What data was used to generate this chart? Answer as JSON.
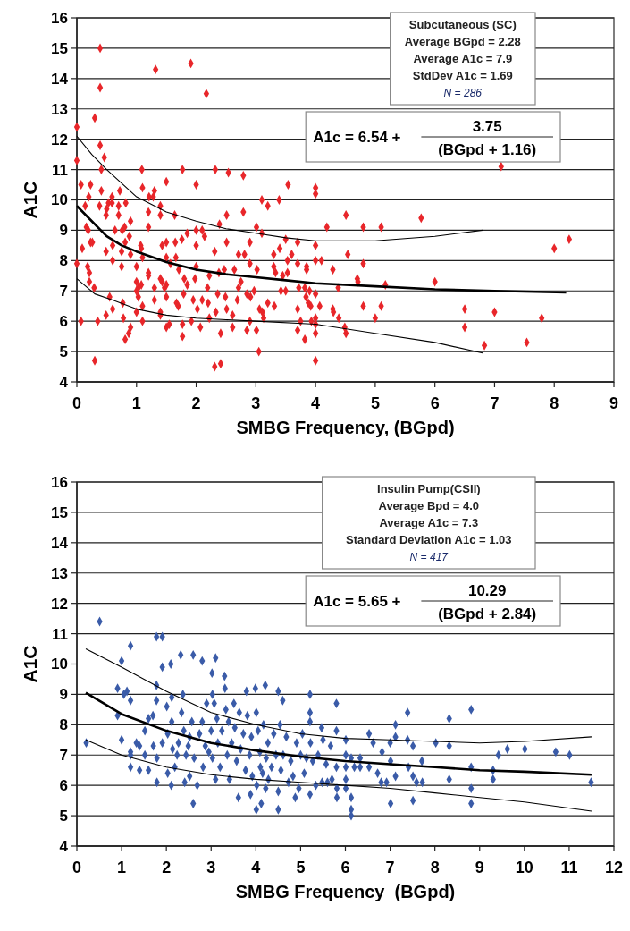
{
  "chart_data": [
    {
      "type": "scatter",
      "xlabel": "SMBG Frequency, (BGpd)",
      "ylabel": "A1C",
      "xlim": [
        0,
        9
      ],
      "xticks": [
        0,
        1,
        2,
        3,
        4,
        5,
        6,
        7,
        8,
        9
      ],
      "ylim": [
        4,
        16
      ],
      "yticks": [
        4,
        5,
        6,
        7,
        8,
        9,
        10,
        11,
        12,
        13,
        14,
        15,
        16
      ],
      "grid": "y",
      "annotations": [
        "Subcutaneous (SC)",
        "Average BGpd = 2.28",
        "Average A1c = 7.9",
        "StdDev A1c = 1.69",
        "N = 286",
        "A1c = 6.54 +",
        "3.75",
        "(BGpd + 1.16)"
      ],
      "series": [
        {
          "type": "scatter",
          "color": "#e8262a",
          "marker": "diamond",
          "x": [
            0,
            0,
            0,
            0.07,
            0.07,
            0.09,
            0.14,
            0.16,
            0.19,
            0.18,
            0.21,
            0.23,
            0.2,
            0.23,
            0.26,
            0.21,
            0.3,
            0.3,
            0.29,
            0.35,
            0.39,
            0.39,
            0.39,
            0.46,
            0.41,
            0.41,
            0.38,
            0.5,
            0.49,
            0.53,
            0.59,
            0.59,
            0.49,
            0.49,
            0.55,
            0.6,
            0.6,
            0.64,
            0.6,
            0.7,
            0.7,
            0.72,
            0.75,
            0.75,
            0.76,
            0.77,
            0.8,
            0.82,
            0.81,
            0.78,
            0.81,
            0.87,
            0.9,
            0.88,
            0.9,
            0.9,
            1.0,
            1.0,
            1.0,
            1.03,
            1.0,
            1.03,
            1.07,
            1.08,
            1.1,
            1.09,
            1.1,
            1.1,
            1.1,
            1.08,
            1.2,
            1.2,
            1.2,
            1.2,
            1.21,
            1.28,
            1.3,
            1.32,
            1.3,
            1.3,
            1.4,
            1.4,
            1.4,
            1.4,
            1.4,
            1.43,
            1.43,
            1.47,
            1.5,
            1.5,
            1.5,
            1.5,
            1.5,
            1.5,
            1.55,
            1.57,
            1.64,
            1.65,
            1.66,
            1.67,
            1.7,
            1.71,
            1.77,
            1.76,
            1.77,
            1.77,
            1.79,
            1.8,
            1.85,
            1.85,
            1.91,
            1.92,
            2.0,
            2.0,
            2.0,
            2.0,
            1.98,
            1.95,
            2.02,
            2.07,
            2.1,
            2.14,
            2.1,
            2.17,
            2.19,
            2.22,
            2.22,
            2.2,
            2.31,
            2.32,
            2.31,
            2.41,
            2.39,
            2.38,
            2.36,
            2.41,
            2.33,
            2.51,
            2.51,
            2.47,
            2.49,
            2.51,
            2.54,
            2.61,
            2.61,
            2.64,
            2.69,
            2.71,
            2.71,
            2.75,
            2.79,
            2.79,
            2.81,
            2.85,
            2.85,
            2.9,
            2.9,
            2.91,
            2.9,
            2.97,
            3.01,
            3.02,
            3.01,
            3.05,
            3.06,
            3.1,
            3.1,
            3.11,
            3.13,
            3.2,
            3.2,
            3.3,
            3.3,
            3.31,
            3.33,
            3.39,
            3.4,
            3.42,
            3.45,
            3.5,
            3.5,
            3.53,
            3.53,
            3.54,
            3.6,
            3.7,
            3.7,
            3.7,
            3.7,
            3.72,
            3.75,
            3.82,
            3.82,
            3.84,
            3.85,
            3.85,
            3.88,
            3.9,
            3.92,
            3.93,
            4.0,
            4.0,
            4.0,
            4.0,
            4.0,
            4.0,
            4.0,
            4.0,
            4.0,
            4.07,
            4.1,
            4.19,
            4.29,
            4.29,
            4.3,
            4.38,
            4.39,
            4.51,
            4.8,
            5.1,
            5.77,
            4.54,
            4.8,
            4.7,
            4.71,
            5.17,
            6.0,
            7.11,
            8.0,
            8.25,
            4.8,
            5.1,
            5.0,
            4.49,
            4.51,
            6.5,
            6.5,
            7.0,
            6.83,
            7.54,
            7.79
          ],
          "values": [
            12.4,
            11.3,
            7.9,
            10.5,
            6.0,
            8.4,
            9.8,
            9.1,
            9.0,
            7.8,
            7.6,
            10.5,
            10.1,
            8.6,
            8.6,
            7.3,
            12.7,
            4.7,
            7.1,
            6.0,
            15.0,
            13.7,
            11.8,
            11.4,
            11.0,
            10.3,
            9.8,
            9.7,
            9.5,
            9.9,
            10.1,
            9.9,
            8.3,
            6.2,
            6.8,
            8.5,
            8.0,
            9.0,
            6.4,
            9.8,
            9.5,
            10.3,
            7.8,
            8.3,
            9.0,
            6.6,
            9.1,
            9.9,
            8.6,
            6.1,
            5.4,
            5.6,
            5.8,
            8.8,
            9.3,
            8.2,
            7.8,
            7.3,
            7.0,
            6.8,
            6.3,
            7.1,
            8.5,
            8.4,
            8.1,
            11.0,
            10.4,
            6.5,
            6.0,
            7.2,
            9.6,
            9.1,
            7.6,
            7.5,
            10.1,
            10.1,
            10.3,
            14.3,
            7.1,
            6.7,
            9.8,
            9.5,
            7.4,
            6.3,
            6.2,
            8.5,
            7.3,
            7.1,
            10.6,
            8.6,
            8.1,
            7.2,
            6.8,
            5.8,
            5.9,
            7.9,
            9.5,
            8.6,
            8.1,
            6.6,
            6.5,
            7.7,
            11.0,
            8.7,
            5.9,
            5.5,
            6.9,
            7.4,
            7.2,
            8.9,
            14.5,
            6.0,
            10.5,
            9.0,
            8.5,
            7.8,
            7.4,
            6.7,
            6.4,
            5.8,
            9.0,
            8.8,
            6.7,
            13.5,
            7.1,
            7.5,
            6.1,
            6.6,
            8.3,
            11.0,
            4.5,
            4.6,
            9.2,
            7.6,
            6.9,
            5.6,
            6.3,
            9.5,
            8.6,
            7.7,
            6.8,
            6.4,
            10.9,
            5.8,
            6.2,
            7.7,
            6.7,
            8.2,
            7.1,
            7.3,
            10.8,
            9.6,
            8.2,
            5.7,
            6.9,
            7.9,
            6.0,
            6.8,
            8.6,
            7.0,
            9.1,
            7.7,
            5.7,
            5.0,
            6.4,
            10.0,
            8.9,
            6.3,
            6.1,
            9.8,
            6.6,
            8.2,
            7.8,
            6.5,
            7.6,
            10.0,
            8.4,
            7.0,
            7.5,
            8.7,
            7.0,
            8.0,
            7.6,
            10.5,
            8.2,
            8.6,
            7.9,
            6.4,
            5.7,
            7.1,
            6.0,
            7.1,
            5.4,
            6.8,
            7.8,
            7.7,
            6.6,
            7.0,
            6.5,
            6.0,
            10.4,
            10.2,
            8.5,
            8.0,
            6.9,
            6.1,
            5.9,
            5.6,
            4.7,
            6.5,
            8.0,
            9.1,
            7.7,
            6.4,
            6.3,
            7.1,
            6.1,
            9.5,
            9.1,
            9.1,
            9.4,
            8.2,
            7.9,
            7.4,
            7.3,
            7.2,
            7.3,
            11.1,
            8.4,
            8.7,
            6.5,
            6.5,
            6.1,
            5.8,
            5.6,
            6.4,
            5.8,
            6.3,
            5.2,
            5.3,
            6.1
          ]
        },
        {
          "type": "line",
          "color": "#000000",
          "marker": "none",
          "x": [
            0,
            0.25,
            0.5,
            0.75,
            1,
            1.5,
            2,
            2.5,
            3,
            3.5,
            4,
            5,
            6,
            7,
            8.2
          ],
          "values": [
            9.8,
            9.3,
            8.8,
            8.5,
            8.3,
            7.95,
            7.7,
            7.55,
            7.45,
            7.35,
            7.25,
            7.15,
            7.05,
            7.0,
            6.95
          ]
        },
        {
          "type": "line",
          "color": "#000000",
          "marker": "none",
          "x": [
            0,
            0.25,
            0.5,
            1,
            1.5,
            2,
            2.5,
            3,
            3.5,
            4,
            5,
            6,
            6.8
          ],
          "values": [
            12.1,
            11.5,
            11.0,
            10.1,
            9.6,
            9.3,
            9.05,
            8.9,
            8.75,
            8.65,
            8.65,
            8.8,
            9.0
          ]
        },
        {
          "type": "line",
          "color": "#000000",
          "marker": "none",
          "x": [
            0,
            0.3,
            0.6,
            1,
            1.5,
            2,
            2.5,
            3,
            4,
            5,
            6,
            6.8
          ],
          "values": [
            7.4,
            6.9,
            6.7,
            6.4,
            6.2,
            6.1,
            6.05,
            6.0,
            5.9,
            5.6,
            5.3,
            4.95
          ]
        }
      ]
    },
    {
      "type": "scatter",
      "xlabel": "SMBG Frequency  (BGpd)",
      "ylabel": "A1C",
      "xlim": [
        0,
        12
      ],
      "xticks": [
        0,
        1,
        2,
        3,
        4,
        5,
        6,
        7,
        8,
        9,
        10,
        11,
        12
      ],
      "ylim": [
        4,
        16
      ],
      "yticks": [
        4,
        5,
        6,
        7,
        8,
        9,
        10,
        11,
        12,
        13,
        14,
        15,
        16
      ],
      "grid": "y",
      "annotations": [
        "Insulin Pump(CSII)",
        "Average Bpd = 4.0",
        "Average A1c = 7.3",
        "Standard Deviation A1c = 1.03",
        "N = 417",
        "A1c = 5.65 +",
        "10.29",
        "(BGpd + 2.84)"
      ],
      "series": [
        {
          "type": "scatter",
          "color": "#3a5ba8",
          "marker": "diamond",
          "x": [
            0.21,
            0.51,
            0.91,
            0.91,
            1.0,
            1.0,
            1.05,
            1.12,
            1.2,
            1.2,
            1.2,
            1.2,
            1.2,
            1.33,
            1.4,
            1.4,
            1.52,
            1.52,
            1.6,
            1.6,
            1.7,
            1.71,
            1.78,
            1.78,
            1.78,
            1.79,
            1.79,
            1.91,
            1.91,
            1.91,
            2.01,
            2.03,
            2.03,
            2.1,
            2.11,
            2.12,
            2.12,
            2.14,
            2.19,
            2.24,
            2.27,
            2.32,
            2.34,
            2.37,
            2.39,
            2.41,
            2.44,
            2.49,
            2.52,
            2.52,
            2.57,
            2.6,
            2.6,
            2.62,
            2.69,
            2.74,
            2.8,
            2.8,
            2.82,
            2.87,
            2.9,
            2.95,
            3.0,
            3.02,
            3.03,
            3.03,
            3.07,
            3.1,
            3.1,
            3.13,
            3.15,
            3.2,
            3.24,
            3.3,
            3.31,
            3.33,
            3.36,
            3.39,
            3.41,
            3.46,
            3.51,
            3.53,
            3.57,
            3.61,
            3.63,
            3.66,
            3.72,
            3.77,
            3.79,
            3.81,
            3.86,
            3.88,
            3.9,
            3.92,
            3.99,
            4.01,
            4.01,
            4.02,
            4.05,
            4.09,
            4.1,
            4.12,
            4.15,
            4.17,
            4.21,
            4.22,
            4.23,
            4.27,
            4.28,
            4.35,
            4.4,
            4.45,
            4.5,
            4.5,
            4.5,
            4.54,
            4.56,
            4.6,
            4.61,
            4.68,
            4.73,
            4.78,
            4.83,
            4.88,
            4.91,
            4.96,
            5.0,
            5.04,
            5.08,
            5.13,
            5.21,
            5.21,
            5.21,
            5.21,
            5.22,
            5.27,
            5.34,
            5.39,
            5.47,
            5.48,
            5.5,
            5.57,
            5.6,
            5.67,
            5.7,
            5.8,
            5.8,
            5.8,
            5.81,
            5.81,
            6.01,
            6.01,
            6.01,
            6.01,
            6.01,
            6.13,
            6.13,
            6.13,
            6.13,
            6.2,
            6.33,
            6.33,
            6.53,
            6.53,
            6.62,
            6.72,
            6.8,
            6.82,
            6.92,
            7.0,
            7.01,
            7.01,
            7.12,
            7.12,
            7.12,
            7.39,
            7.39,
            7.41,
            7.51,
            7.51,
            7.51,
            7.59,
            7.71,
            7.72,
            8.02,
            8.32,
            8.32,
            8.32,
            8.81,
            8.81,
            8.81,
            8.81,
            9.3,
            9.3,
            9.42,
            9.62,
            10.01,
            10.7,
            11.01,
            11.49
          ],
          "values": [
            7.4,
            11.4,
            9.2,
            8.3,
            10.1,
            7.5,
            9.0,
            9.1,
            10.6,
            8.8,
            7.1,
            7.0,
            6.6,
            7.4,
            7.3,
            6.5,
            7.8,
            7.0,
            6.5,
            8.2,
            8.3,
            7.3,
            10.9,
            9.3,
            8.8,
            6.1,
            6.9,
            10.9,
            9.9,
            7.4,
            8.6,
            7.7,
            6.4,
            10.0,
            6.0,
            8.9,
            8.1,
            7.2,
            6.6,
            7.0,
            7.4,
            10.3,
            8.4,
            9.0,
            7.8,
            6.1,
            7.0,
            7.3,
            6.3,
            7.6,
            8.1,
            10.3,
            5.4,
            6.9,
            6.0,
            7.7,
            10.1,
            8.1,
            6.6,
            7.3,
            8.7,
            7.1,
            7.8,
            9.7,
            9.0,
            6.9,
            8.7,
            10.2,
            6.2,
            8.2,
            7.4,
            6.6,
            7.8,
            9.6,
            9.2,
            8.5,
            7.0,
            8.1,
            6.2,
            7.4,
            8.7,
            7.9,
            6.8,
            5.6,
            8.4,
            7.2,
            7.7,
            6.5,
            9.1,
            8.3,
            7.0,
            5.7,
            7.6,
            6.3,
            9.2,
            8.4,
            5.2,
            6.0,
            7.8,
            7.1,
            6.6,
            5.4,
            6.4,
            8.0,
            9.3,
            5.9,
            6.9,
            7.4,
            6.2,
            6.6,
            7.7,
            7.0,
            9.1,
            5.8,
            5.2,
            8.0,
            6.5,
            8.8,
            7.0,
            7.6,
            6.1,
            6.8,
            6.3,
            5.6,
            7.4,
            5.9,
            7.0,
            7.7,
            6.4,
            6.9,
            9.0,
            8.4,
            8.1,
            5.7,
            7.4,
            6.8,
            6.0,
            7.0,
            7.9,
            6.1,
            7.5,
            6.7,
            6.1,
            7.3,
            6.2,
            8.7,
            7.8,
            6.6,
            5.6,
            5.9,
            7.5,
            7.0,
            6.6,
            6.2,
            5.9,
            5.6,
            5.2,
            5.0,
            6.9,
            6.6,
            6.9,
            6.6,
            7.7,
            6.6,
            7.4,
            6.4,
            6.1,
            7.1,
            6.1,
            7.4,
            6.8,
            5.4,
            8.0,
            7.6,
            6.3,
            8.4,
            7.5,
            6.6,
            7.3,
            6.3,
            5.5,
            6.1,
            6.8,
            6.1,
            7.4,
            8.2,
            7.3,
            6.2,
            8.5,
            6.6,
            5.9,
            5.4,
            6.5,
            6.2,
            7.0,
            7.2,
            7.2,
            7.1,
            7.0,
            6.1
          ]
        },
        {
          "type": "line",
          "color": "#000000",
          "marker": "none",
          "x": [
            0.2,
            1,
            2,
            3,
            4,
            5,
            6,
            7,
            8,
            9,
            10,
            11.5
          ],
          "values": [
            9.05,
            8.35,
            7.8,
            7.4,
            7.15,
            6.95,
            6.8,
            6.7,
            6.6,
            6.5,
            6.45,
            6.35
          ]
        },
        {
          "type": "line",
          "color": "#000000",
          "marker": "none",
          "x": [
            0.2,
            1,
            2,
            3,
            4,
            5,
            6,
            7,
            8,
            9,
            10,
            11.5
          ],
          "values": [
            10.5,
            9.9,
            9.1,
            8.4,
            8.0,
            7.7,
            7.55,
            7.5,
            7.45,
            7.4,
            7.45,
            7.6
          ]
        },
        {
          "type": "line",
          "color": "#000000",
          "marker": "none",
          "x": [
            0.2,
            1,
            2,
            3,
            4,
            5,
            6,
            7,
            8,
            9,
            10,
            11.5
          ],
          "values": [
            7.5,
            7.0,
            6.6,
            6.35,
            6.2,
            6.1,
            6.0,
            5.9,
            5.75,
            5.6,
            5.45,
            5.15
          ]
        }
      ]
    }
  ]
}
